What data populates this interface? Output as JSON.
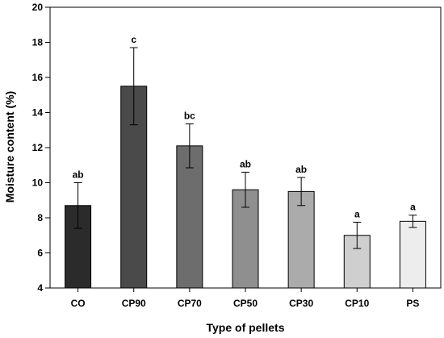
{
  "chart_data": {
    "type": "bar",
    "xlabel": "Type of pellets",
    "ylabel": "Moisture content (%)",
    "ylim": [
      4,
      20
    ],
    "yticks": [
      4,
      6,
      8,
      10,
      12,
      14,
      16,
      18,
      20
    ],
    "grid": false,
    "categories": [
      "CO",
      "CP90",
      "CP70",
      "CP50",
      "CP30",
      "CP10",
      "PS"
    ],
    "values": [
      8.7,
      15.5,
      12.1,
      9.6,
      9.5,
      7.0,
      7.8
    ],
    "errors": [
      1.3,
      2.2,
      1.25,
      1.0,
      0.8,
      0.75,
      0.35
    ],
    "significance": [
      "ab",
      "c",
      "bc",
      "ab",
      "ab",
      "a",
      "a"
    ],
    "colors": [
      "#2b2b2b",
      "#4a4a4a",
      "#6d6d6d",
      "#8f8f8f",
      "#ababab",
      "#cfcfcf",
      "#ededed"
    ]
  }
}
